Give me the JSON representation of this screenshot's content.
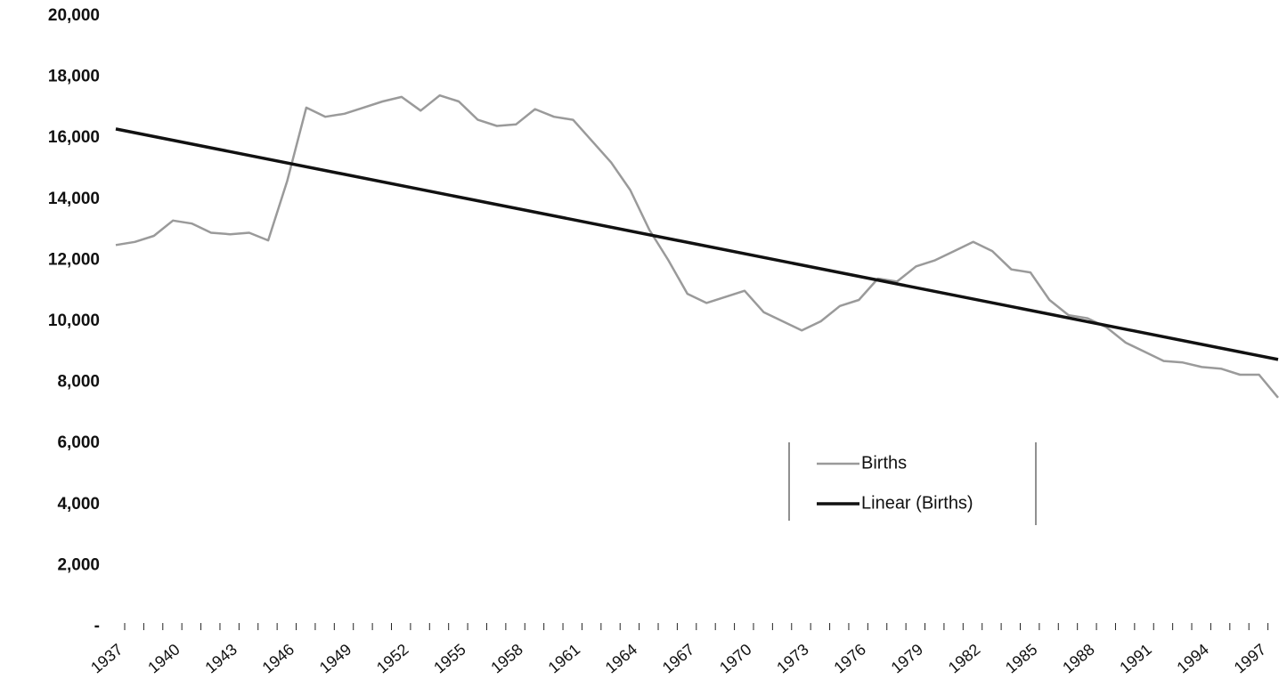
{
  "chart_data": {
    "type": "line",
    "xlim": [
      1937,
      1998
    ],
    "ylim": [
      0,
      20000
    ],
    "yticks": [
      {
        "value": 0,
        "label": "-"
      },
      {
        "value": 2000,
        "label": "2,000"
      },
      {
        "value": 4000,
        "label": "4,000"
      },
      {
        "value": 6000,
        "label": "6,000"
      },
      {
        "value": 8000,
        "label": "8,000"
      },
      {
        "value": 10000,
        "label": "10,000"
      },
      {
        "value": 12000,
        "label": "12,000"
      },
      {
        "value": 14000,
        "label": "14,000"
      },
      {
        "value": 16000,
        "label": "16,000"
      },
      {
        "value": 18000,
        "label": "18,000"
      },
      {
        "value": 20000,
        "label": "20,000"
      }
    ],
    "xticks": [
      1937,
      1940,
      1943,
      1946,
      1949,
      1952,
      1955,
      1958,
      1961,
      1964,
      1967,
      1970,
      1973,
      1976,
      1979,
      1982,
      1985,
      1988,
      1991,
      1994,
      1997
    ],
    "legend": "center-right",
    "series": [
      {
        "name": "Births",
        "color": "#9a9a9a",
        "x": [
          1937,
          1938,
          1939,
          1940,
          1941,
          1942,
          1943,
          1944,
          1945,
          1946,
          1947,
          1948,
          1949,
          1950,
          1951,
          1952,
          1953,
          1954,
          1955,
          1956,
          1957,
          1958,
          1959,
          1960,
          1961,
          1962,
          1963,
          1964,
          1965,
          1966,
          1967,
          1968,
          1969,
          1970,
          1971,
          1972,
          1973,
          1974,
          1975,
          1976,
          1977,
          1978,
          1979,
          1980,
          1981,
          1982,
          1983,
          1984,
          1985,
          1986,
          1987,
          1988,
          1989,
          1990,
          1991,
          1992,
          1993,
          1994,
          1995,
          1996,
          1997,
          1998
        ],
        "values": [
          12500,
          12600,
          12800,
          13300,
          13200,
          12900,
          12850,
          12900,
          12650,
          14600,
          17000,
          16700,
          16800,
          17000,
          17200,
          17350,
          16900,
          17400,
          17200,
          16600,
          16400,
          16450,
          16950,
          16700,
          16600,
          15900,
          15200,
          14300,
          13000,
          12000,
          10900,
          10600,
          10800,
          11000,
          10300,
          10000,
          9700,
          10000,
          10500,
          10700,
          11400,
          11300,
          11800,
          12000,
          12300,
          12600,
          12300,
          11700,
          11600,
          10700,
          10200,
          10100,
          9800,
          9300,
          9000,
          8700,
          8650,
          8500,
          8450,
          8250,
          8250,
          7500
        ]
      },
      {
        "name": "Linear (Births)",
        "color": "#111111",
        "x": [
          1937,
          1998
        ],
        "values": [
          16300,
          8750
        ]
      }
    ]
  }
}
